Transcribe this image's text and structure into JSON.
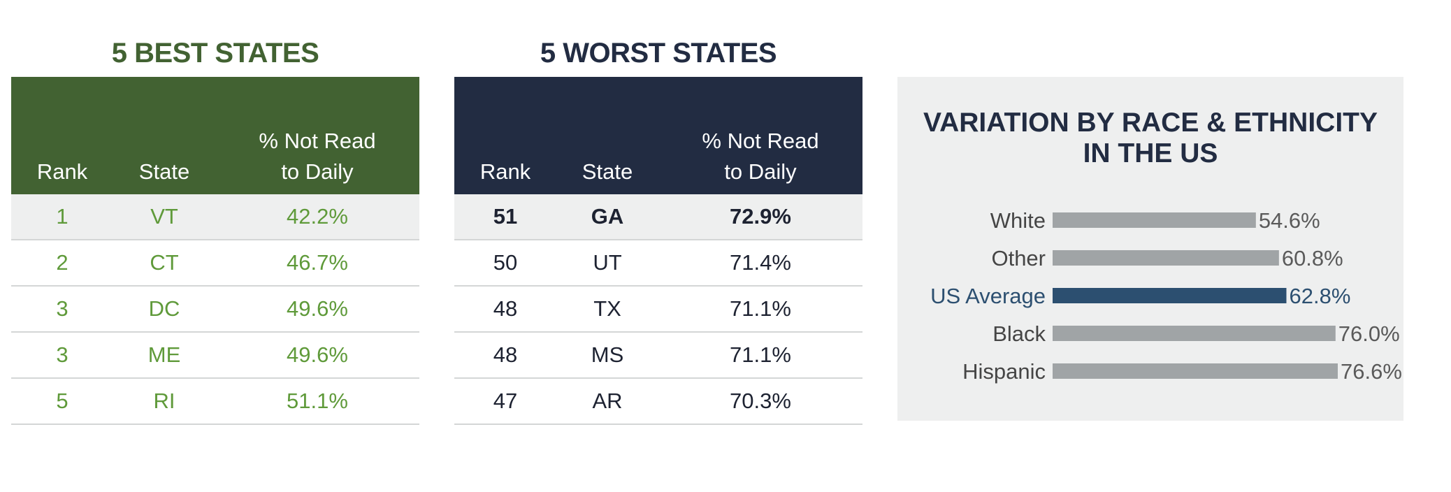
{
  "best": {
    "title": "5 BEST STATES",
    "headers": {
      "rank": "Rank",
      "state": "State",
      "pct_line1": "% Not Read",
      "pct_line2": "to Daily"
    },
    "rows": [
      {
        "rank": "1",
        "state": "VT",
        "pct": "42.2%"
      },
      {
        "rank": "2",
        "state": "CT",
        "pct": "46.7%"
      },
      {
        "rank": "3",
        "state": "DC",
        "pct": "49.6%"
      },
      {
        "rank": "3",
        "state": "ME",
        "pct": "49.6%"
      },
      {
        "rank": "5",
        "state": "RI",
        "pct": "51.1%"
      }
    ]
  },
  "worst": {
    "title": "5 WORST STATES",
    "headers": {
      "rank": "Rank",
      "state": "State",
      "pct_line1": "% Not Read",
      "pct_line2": "to Daily"
    },
    "rows": [
      {
        "rank": "51",
        "state": "GA",
        "pct": "72.9%"
      },
      {
        "rank": "50",
        "state": "UT",
        "pct": "71.4%"
      },
      {
        "rank": "48",
        "state": "TX",
        "pct": "71.1%"
      },
      {
        "rank": "48",
        "state": "MS",
        "pct": "71.1%"
      },
      {
        "rank": "47",
        "state": "AR",
        "pct": "70.3%"
      }
    ]
  },
  "colors": {
    "best_header": "#426232",
    "best_text": "#5f9a3a",
    "worst_header": "#222c42",
    "bar_gray": "#a0a4a6",
    "bar_highlight": "#2c4f70",
    "panel_bg": "#eeefef"
  },
  "chart_data": {
    "type": "bar",
    "orientation": "horizontal",
    "title_line1": "VARIATION BY RACE & ETHNICITY",
    "title_line2": "IN THE US",
    "categories": [
      "White",
      "Other",
      "US Average",
      "Black",
      "Hispanic"
    ],
    "values": [
      54.6,
      60.8,
      62.8,
      76.0,
      76.6
    ],
    "value_labels": [
      "54.6%",
      "60.8%",
      "62.8%",
      "76.0%",
      "76.6%"
    ],
    "highlight": "US Average",
    "xlim": [
      0,
      76.6
    ],
    "grid": false,
    "legend": "none"
  }
}
